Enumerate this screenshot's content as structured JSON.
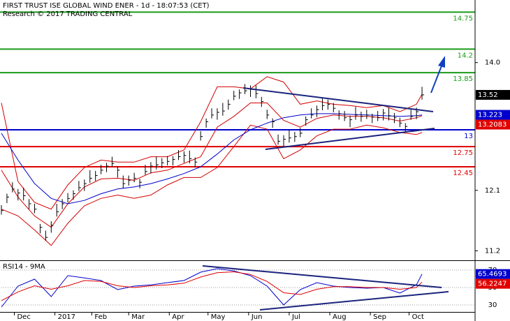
{
  "chart_data": [
    {
      "type": "ohlc",
      "title": "FIRST TRUST ISE GLOBAL WIND ENER - 1d - 18:07:53 (CET)",
      "subtitle": "Research © 2017 TRADING CENTRAL",
      "color": "#000000",
      "x": [
        0,
        3,
        6,
        9,
        12,
        15,
        18,
        21,
        24,
        27,
        30,
        33,
        36,
        39,
        42,
        45,
        48,
        51,
        54,
        57,
        60,
        63,
        66,
        69,
        72,
        75,
        78,
        81,
        84,
        87,
        90,
        93,
        96,
        99,
        102,
        105,
        108,
        111,
        114,
        117,
        120,
        123,
        126,
        129,
        132,
        135,
        138,
        141,
        144,
        147,
        150,
        153,
        156,
        159,
        162,
        165,
        168,
        171,
        174,
        177,
        180,
        183,
        186,
        189,
        192,
        195,
        198,
        201,
        204,
        207,
        210,
        213,
        216,
        219,
        222,
        225,
        228
      ],
      "high": [
        11.88,
        12.05,
        12.22,
        12.12,
        12.14,
        11.97,
        11.9,
        11.6,
        11.5,
        11.64,
        11.9,
        11.97,
        12.06,
        12.1,
        12.24,
        12.26,
        12.4,
        12.39,
        12.48,
        12.51,
        12.6,
        12.46,
        12.32,
        12.32,
        12.36,
        12.27,
        12.48,
        12.52,
        12.6,
        12.58,
        12.61,
        12.61,
        12.7,
        12.68,
        12.69,
        12.59,
        12.98,
        13.17,
        13.32,
        13.32,
        13.4,
        13.45,
        13.58,
        13.6,
        13.68,
        13.66,
        13.66,
        13.49,
        13.3,
        13.17,
        12.93,
        12.92,
        13.0,
        12.97,
        13.03,
        13.2,
        13.32,
        13.36,
        13.48,
        13.45,
        13.4,
        13.29,
        13.28,
        13.21,
        13.34,
        13.27,
        13.3,
        13.24,
        13.28,
        13.31,
        13.33,
        13.25,
        13.18,
        13.1,
        13.3,
        13.33,
        13.64
      ],
      "low": [
        11.74,
        11.91,
        12.07,
        11.95,
        11.95,
        11.82,
        11.76,
        11.46,
        11.35,
        11.47,
        11.71,
        11.82,
        11.92,
        11.96,
        12.09,
        12.09,
        12.21,
        12.24,
        12.34,
        12.37,
        12.45,
        12.29,
        12.13,
        12.17,
        12.22,
        12.13,
        12.33,
        12.35,
        12.41,
        12.43,
        12.47,
        12.47,
        12.55,
        12.51,
        12.5,
        12.44,
        12.84,
        13.03,
        13.17,
        13.15,
        13.21,
        13.3,
        13.44,
        13.46,
        13.53,
        13.49,
        13.47,
        13.34,
        13.16,
        13.03,
        12.78,
        12.75,
        12.81,
        12.82,
        12.89,
        13.06,
        13.17,
        13.19,
        13.29,
        13.3,
        13.26,
        13.15,
        13.13,
        13.04,
        13.15,
        13.12,
        13.16,
        13.1,
        13.13,
        13.14,
        13.14,
        13.1,
        13.04,
        12.96,
        13.15,
        13.16,
        13.45
      ],
      "close": [
        11.8,
        12.0,
        12.12,
        12.06,
        12.02,
        11.9,
        11.82,
        11.55,
        11.4,
        11.58,
        11.78,
        11.9,
        11.98,
        12.05,
        12.14,
        12.2,
        12.28,
        12.32,
        12.4,
        12.46,
        12.5,
        12.4,
        12.2,
        12.25,
        12.28,
        12.22,
        12.38,
        12.46,
        12.48,
        12.51,
        12.53,
        12.56,
        12.6,
        12.62,
        12.57,
        12.52,
        12.9,
        13.12,
        13.22,
        13.26,
        13.28,
        13.38,
        13.5,
        13.55,
        13.58,
        13.6,
        13.54,
        13.42,
        13.22,
        13.12,
        12.83,
        12.86,
        12.88,
        12.9,
        12.95,
        13.15,
        13.22,
        13.3,
        13.36,
        13.38,
        13.32,
        13.24,
        13.18,
        13.15,
        13.22,
        13.2,
        13.22,
        13.19,
        13.18,
        13.25,
        13.21,
        13.18,
        13.1,
        13.05,
        13.2,
        13.27,
        13.52
      ],
      "series": [
        {
          "color": "#d40000",
          "x": [
            0,
            9,
            18,
            27,
            36,
            45,
            54,
            63,
            72,
            81,
            90,
            99,
            108,
            117,
            126,
            135,
            144,
            153,
            162,
            171,
            180,
            189,
            198,
            207,
            216,
            225,
            228
          ],
          "values": [
            13.4,
            12.23,
            11.92,
            11.82,
            12.18,
            12.44,
            12.55,
            12.52,
            12.52,
            12.6,
            12.6,
            12.7,
            13.12,
            13.64,
            13.64,
            13.61,
            13.79,
            13.71,
            13.38,
            13.43,
            13.38,
            13.36,
            13.33,
            13.36,
            13.27,
            13.38,
            13.53
          ]
        },
        {
          "color": "#d40000",
          "x": [
            0,
            9,
            18,
            27,
            36,
            45,
            54,
            63,
            72,
            81,
            90,
            99,
            108,
            117,
            126,
            135,
            144,
            153,
            162,
            171,
            180,
            189,
            198,
            207,
            216,
            225,
            228
          ],
          "values": [
            11.82,
            11.72,
            11.51,
            11.28,
            11.61,
            11.87,
            11.98,
            12.03,
            11.98,
            12.03,
            12.18,
            12.29,
            12.29,
            12.44,
            12.75,
            13.07,
            13.01,
            12.57,
            12.7,
            12.91,
            13.01,
            13.01,
            13.07,
            13.03,
            12.96,
            12.93,
            12.96
          ]
        },
        {
          "color": "#d40000",
          "x": [
            0,
            9,
            18,
            27,
            36,
            45,
            54,
            63,
            72,
            81,
            90,
            99,
            108,
            117,
            126,
            135,
            144,
            153,
            162,
            171,
            180,
            189,
            198,
            207,
            216,
            225,
            228
          ],
          "values": [
            12.4,
            12.0,
            11.72,
            11.55,
            11.9,
            12.15,
            12.27,
            12.28,
            12.25,
            12.36,
            12.4,
            12.5,
            12.6,
            13.04,
            13.2,
            13.4,
            13.4,
            13.14,
            13.04,
            13.17,
            13.22,
            13.2,
            13.2,
            13.18,
            13.13,
            13.18,
            13.21
          ]
        },
        {
          "color": "#0000cc",
          "x": [
            0,
            9,
            18,
            27,
            36,
            45,
            54,
            63,
            72,
            81,
            90,
            99,
            108,
            117,
            126,
            135,
            144,
            153,
            162,
            171,
            180,
            189,
            198,
            207,
            216,
            225,
            228
          ],
          "values": [
            12.95,
            12.55,
            12.2,
            11.98,
            11.9,
            11.95,
            12.05,
            12.12,
            12.15,
            12.2,
            12.27,
            12.35,
            12.45,
            12.64,
            12.85,
            13.0,
            13.1,
            13.18,
            13.22,
            13.24,
            13.24,
            13.23,
            13.22,
            13.21,
            13.2,
            13.21,
            13.22
          ]
        }
      ],
      "levels": [
        {
          "value": 14.75,
          "label": "14.75",
          "color": "#1a9a1a"
        },
        {
          "value": 14.2,
          "label": "14.2",
          "color": "#1a9a1a"
        },
        {
          "value": 13.85,
          "label": "13.85",
          "color": "#1a9a1a"
        },
        {
          "value": 13,
          "label": "13",
          "color": "#0000cc"
        },
        {
          "value": 12.75,
          "label": "12.75",
          "color": "#e00000"
        },
        {
          "value": 12.45,
          "label": "12.45",
          "color": "#e00000"
        }
      ],
      "tags": [
        {
          "value": 13.52,
          "label": "13.52",
          "color": "#000000"
        },
        {
          "value": 13.223,
          "label": "13.223",
          "color": "#0000cc"
        },
        {
          "value": 13.2083,
          "label": "13.2083",
          "color": "#e00000"
        }
      ],
      "xlim": [
        0,
        256
      ],
      "ylim": [
        11.07,
        14.91
      ],
      "yticks": [
        {
          "value": 14,
          "label": "14.0"
        },
        12.1,
        11.2
      ]
    },
    {
      "type": "line",
      "title": "RSI14 - 9MA",
      "series": [
        {
          "color": "#0000cc",
          "x": [
            0,
            9,
            18,
            27,
            36,
            45,
            54,
            63,
            72,
            81,
            90,
            99,
            108,
            117,
            126,
            135,
            144,
            153,
            162,
            171,
            180,
            189,
            198,
            207,
            216,
            225,
            228
          ],
          "values": [
            27.6,
            51.6,
            59.6,
            39.6,
            63.6,
            61,
            58,
            47.6,
            51.6,
            53,
            55.6,
            58,
            67.6,
            71.6,
            69,
            63.6,
            51.6,
            30,
            47.6,
            55.6,
            51.6,
            50,
            49.2,
            50,
            43.6,
            53.2,
            65.47
          ]
        },
        {
          "color": "#e00000",
          "x": [
            0,
            9,
            18,
            27,
            36,
            45,
            54,
            63,
            72,
            81,
            90,
            99,
            108,
            117,
            126,
            135,
            144,
            153,
            162,
            171,
            180,
            189,
            198,
            207,
            216,
            225,
            228
          ],
          "values": [
            35,
            45,
            52,
            48,
            52,
            58,
            57,
            52,
            50,
            52,
            53,
            55,
            62,
            67,
            68,
            65,
            57,
            44,
            42,
            48,
            51,
            51,
            50,
            50,
            48,
            50,
            56.22
          ]
        }
      ],
      "tags": [
        {
          "value": 65.4693,
          "label": "65.4693",
          "color": "#0000cc"
        },
        {
          "value": 56.2247,
          "label": "56.2247",
          "color": "#e00000"
        }
      ],
      "xlim": [
        0,
        256
      ],
      "ylim": [
        22,
        79.6
      ],
      "yticks": [
        30,
        50,
        70
      ],
      "xticks": [
        {
          "value": 7,
          "label": "Dec"
        },
        {
          "value": 29,
          "label": "2017"
        },
        {
          "value": 49,
          "label": "Feb"
        },
        {
          "value": 69,
          "label": "Mar"
        },
        {
          "value": 91,
          "label": "Apr"
        },
        {
          "value": 112,
          "label": "May"
        },
        {
          "value": 134,
          "label": "Jun"
        },
        {
          "value": 156,
          "label": "Jul"
        },
        {
          "value": 178,
          "label": "Aug"
        },
        {
          "value": 200,
          "label": "Sep"
        },
        {
          "value": 221,
          "label": "Oct"
        }
      ]
    }
  ]
}
